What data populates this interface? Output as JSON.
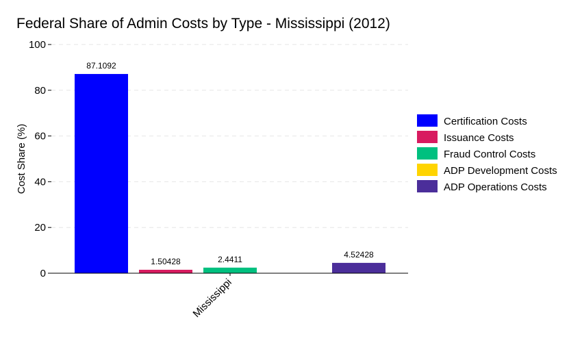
{
  "chart_data": {
    "type": "bar",
    "title": "Federal Share of Admin Costs by Type - Mississippi (2012)",
    "xlabel": "",
    "ylabel": "Cost Share (%)",
    "categories": [
      "Mississippi"
    ],
    "ylim": [
      0,
      100
    ],
    "yticks": [
      0,
      20,
      40,
      60,
      80,
      100
    ],
    "grid": true,
    "legend_position": "right",
    "series": [
      {
        "name": "Certification Costs",
        "color": "#0000ff",
        "values": [
          87.1092
        ],
        "label": "87.1092"
      },
      {
        "name": "Issuance Costs",
        "color": "#d81b60",
        "values": [
          1.50428
        ],
        "label": "1.50428"
      },
      {
        "name": "Fraud Control Costs",
        "color": "#00c07f",
        "values": [
          2.4411
        ],
        "label": "2.4411"
      },
      {
        "name": "ADP Development Costs",
        "color": "#ffd400",
        "values": [
          0
        ],
        "label": ""
      },
      {
        "name": "ADP Operations Costs",
        "color": "#4b2e9a",
        "values": [
          4.52428
        ],
        "label": "4.52428"
      }
    ]
  }
}
